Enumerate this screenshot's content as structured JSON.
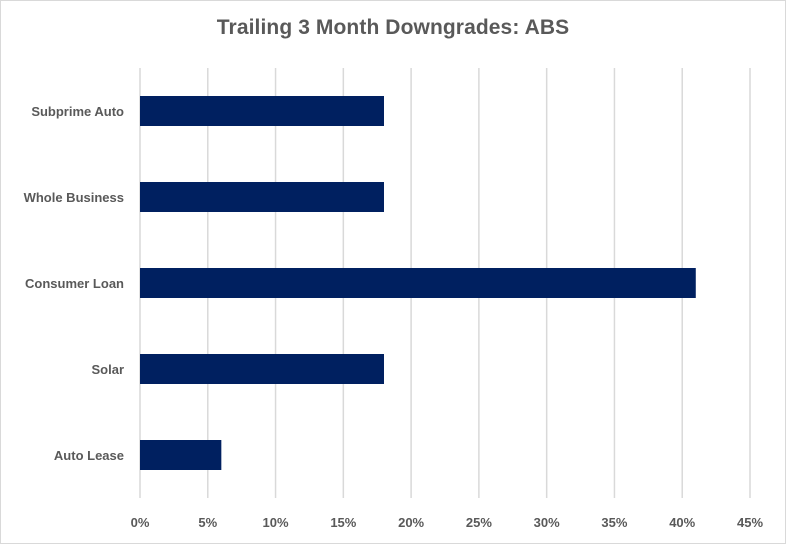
{
  "chart_data": {
    "type": "bar",
    "orientation": "horizontal",
    "title": "Trailing 3 Month Downgrades: ABS",
    "xlabel": "",
    "ylabel": "",
    "categories": [
      "Subprime Auto",
      "Whole Business",
      "Consumer Loan",
      "Solar",
      "Auto Lease"
    ],
    "values": [
      0.18,
      0.18,
      0.41,
      0.18,
      0.06
    ],
    "xlim": [
      0,
      0.45
    ],
    "xticks": [
      0,
      0.05,
      0.1,
      0.15,
      0.2,
      0.25,
      0.3,
      0.35,
      0.4,
      0.45
    ],
    "xtick_labels": [
      "0%",
      "5%",
      "10%",
      "15%",
      "20%",
      "25%",
      "30%",
      "35%",
      "40%",
      "45%"
    ],
    "grid": "vertical",
    "legend": "none",
    "bar_color": "#002060",
    "grid_color": "#d9d9d9"
  }
}
